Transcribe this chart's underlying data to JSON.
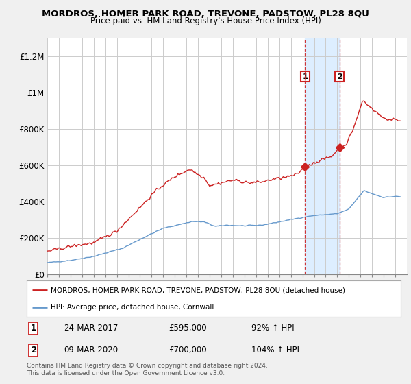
{
  "title": "MORDROS, HOMER PARK ROAD, TREVONE, PADSTOW, PL28 8QU",
  "subtitle": "Price paid vs. HM Land Registry's House Price Index (HPI)",
  "background_color": "#f0f0f0",
  "plot_bg_color": "#ffffff",
  "grid_color": "#cccccc",
  "hpi_color": "#6699cc",
  "price_color": "#cc2222",
  "shade_color": "#ddeeff",
  "purchases": [
    {
      "date_num": 2017.23,
      "price": 595000,
      "label": "1",
      "pct": "92% ↑ HPI",
      "date_str": "24-MAR-2017"
    },
    {
      "date_num": 2020.19,
      "price": 700000,
      "label": "2",
      "pct": "104% ↑ HPI",
      "date_str": "09-MAR-2020"
    }
  ],
  "legend_line1": "MORDROS, HOMER PARK ROAD, TREVONE, PADSTOW, PL28 8QU (detached house)",
  "legend_line2": "HPI: Average price, detached house, Cornwall",
  "footer1": "Contains HM Land Registry data © Crown copyright and database right 2024.",
  "footer2": "This data is licensed under the Open Government Licence v3.0.",
  "ylim": [
    0,
    1300000
  ],
  "yticks": [
    0,
    200000,
    400000,
    600000,
    800000,
    1000000,
    1200000
  ],
  "ytick_labels": [
    "£0",
    "£200K",
    "£400K",
    "£600K",
    "£800K",
    "£1M",
    "£1.2M"
  ],
  "xmin": 1995,
  "xmax": 2026
}
